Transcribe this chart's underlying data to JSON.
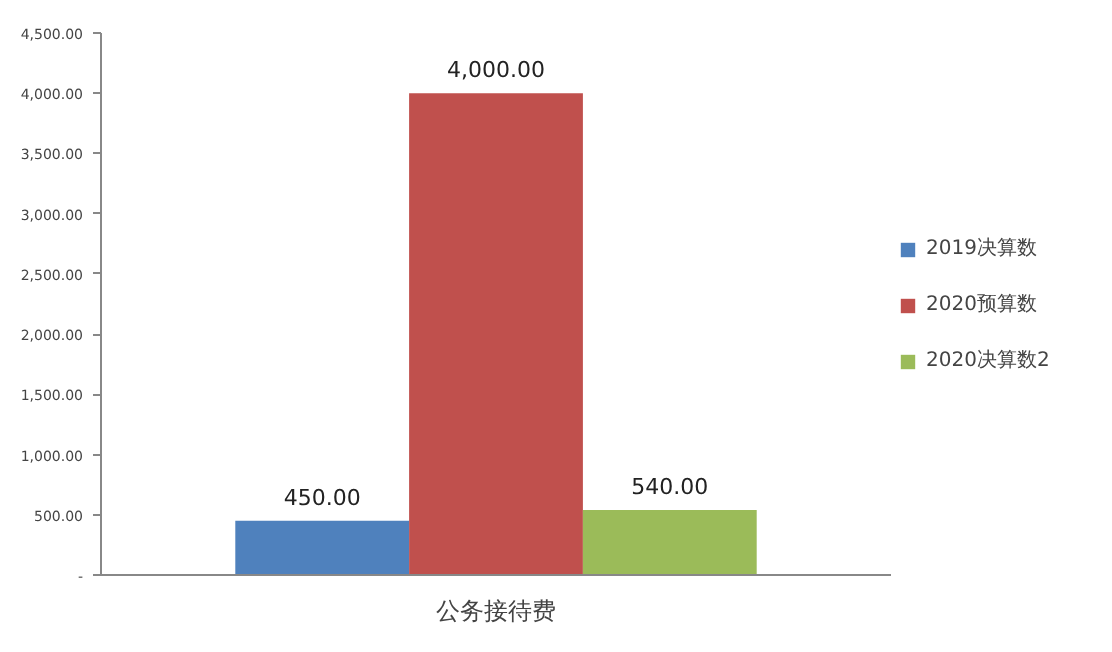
{
  "chart_data": {
    "type": "bar",
    "categories": [
      "公务接待费"
    ],
    "series": [
      {
        "name": "2019决算数",
        "color": "#4f81bd",
        "values": [
          450
        ]
      },
      {
        "name": "2020预算数",
        "color": "#c0504d",
        "values": [
          4000
        ]
      },
      {
        "name": "2020决算数2",
        "color": "#9bbb59",
        "values": [
          540
        ]
      }
    ],
    "value_labels": [
      [
        "450.00"
      ],
      [
        "4,000.00"
      ],
      [
        "540.00"
      ]
    ],
    "ylim": [
      0,
      4500
    ],
    "yticks": [
      {
        "value": 0,
        "label": "-"
      },
      {
        "value": 500,
        "label": "500.00"
      },
      {
        "value": 1000,
        "label": "1,000.00"
      },
      {
        "value": 1500,
        "label": "1,500.00"
      },
      {
        "value": 2000,
        "label": "2,000.00"
      },
      {
        "value": 2500,
        "label": "2,500.00"
      },
      {
        "value": 3000,
        "label": "3,000.00"
      },
      {
        "value": 3500,
        "label": "3,500.00"
      },
      {
        "value": 4000,
        "label": "4,000.00"
      },
      {
        "value": 4500,
        "label": "4,500.00"
      }
    ],
    "grid": false,
    "legend": "right"
  }
}
